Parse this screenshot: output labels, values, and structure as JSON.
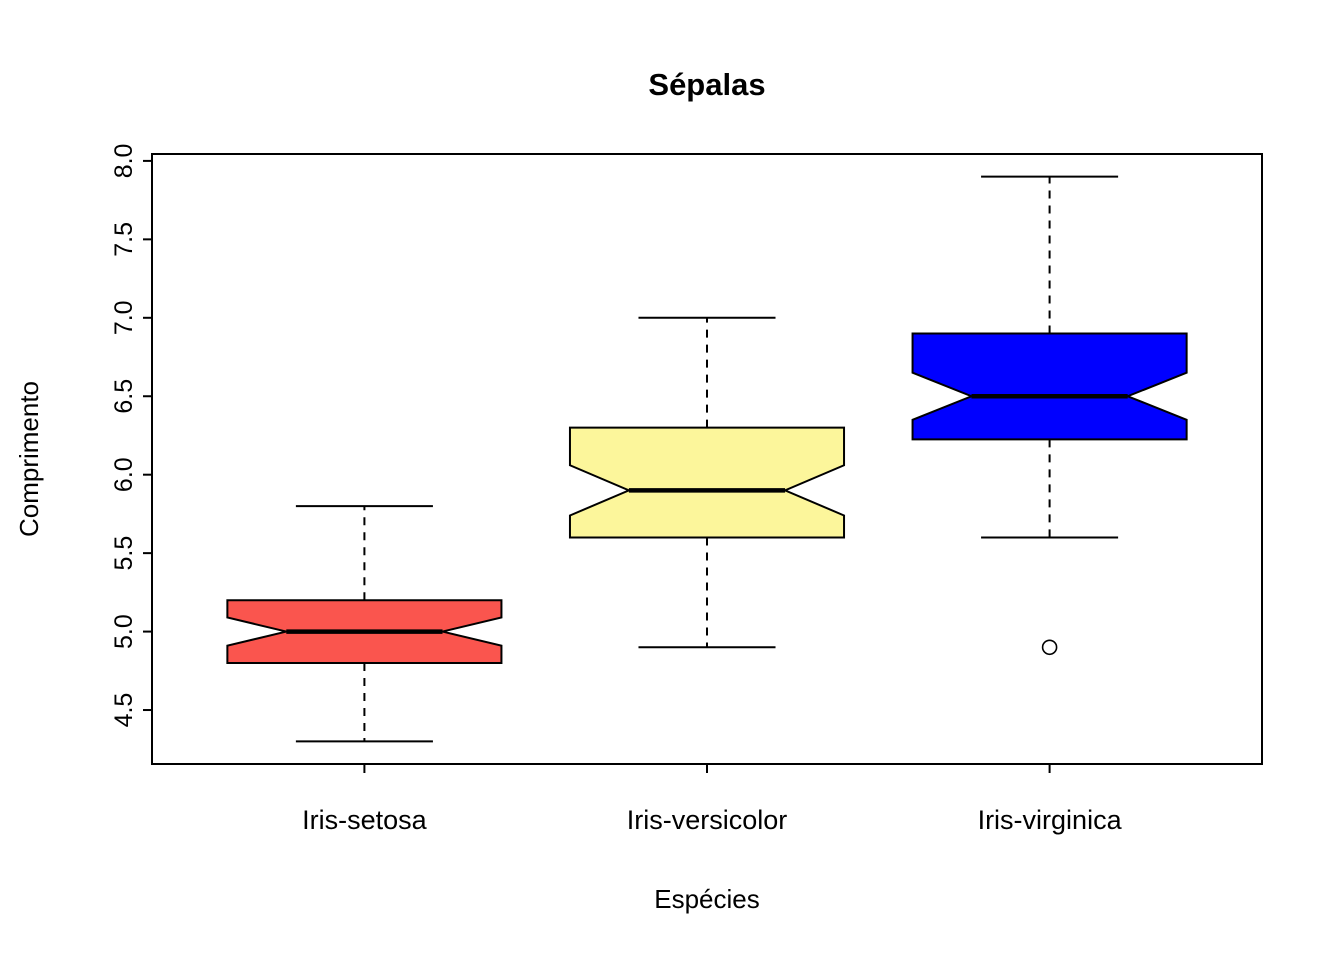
{
  "chart_data": {
    "type": "boxplot",
    "title": "Sépalas",
    "xlabel": "Espécies",
    "ylabel": "Comprimento",
    "categories": [
      "Iris-setosa",
      "Iris-versicolor",
      "Iris-virginica"
    ],
    "y_ticks": [
      4.5,
      5.0,
      5.5,
      6.0,
      6.5,
      7.0,
      7.5,
      8.0
    ],
    "ylim": [
      4.156,
      8.044
    ],
    "notched": true,
    "grid": false,
    "legend": "none",
    "series": [
      {
        "name": "Iris-setosa",
        "color": "#FA554E",
        "whisker_low": 4.3,
        "q1": 4.8,
        "median": 5.0,
        "q3": 5.2,
        "whisker_high": 5.8,
        "notch_low": 4.91,
        "notch_high": 5.09,
        "outliers": []
      },
      {
        "name": "Iris-versicolor",
        "color": "#FCF69B",
        "whisker_low": 4.9,
        "q1": 5.6,
        "median": 5.9,
        "q3": 6.3,
        "whisker_high": 7.0,
        "notch_low": 5.74,
        "notch_high": 6.06,
        "outliers": []
      },
      {
        "name": "Iris-virginica",
        "color": "#0000FF",
        "whisker_low": 5.6,
        "q1": 6.225,
        "median": 6.5,
        "q3": 6.9,
        "whisker_high": 7.9,
        "notch_low": 6.35,
        "notch_high": 6.65,
        "outliers": [
          4.9
        ]
      }
    ]
  }
}
